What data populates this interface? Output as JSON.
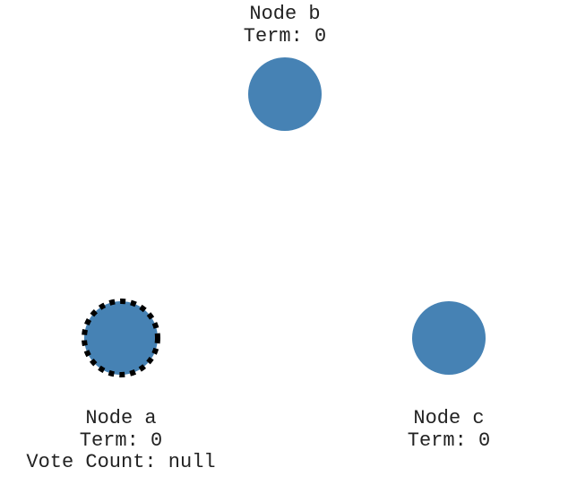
{
  "colors": {
    "node_fill": "#4682b4",
    "candidate_ring": "#000000",
    "text": "#222222",
    "background": "#ffffff"
  },
  "nodes": [
    {
      "id": "b",
      "title": "Node b",
      "term": "Term: 0",
      "vote_count": null,
      "is_candidate": false
    },
    {
      "id": "a",
      "title": "Node a",
      "term": "Term: 0",
      "vote_count": "Vote Count: null",
      "is_candidate": true
    },
    {
      "id": "c",
      "title": "Node c",
      "term": "Term: 0",
      "vote_count": null,
      "is_candidate": false
    }
  ]
}
